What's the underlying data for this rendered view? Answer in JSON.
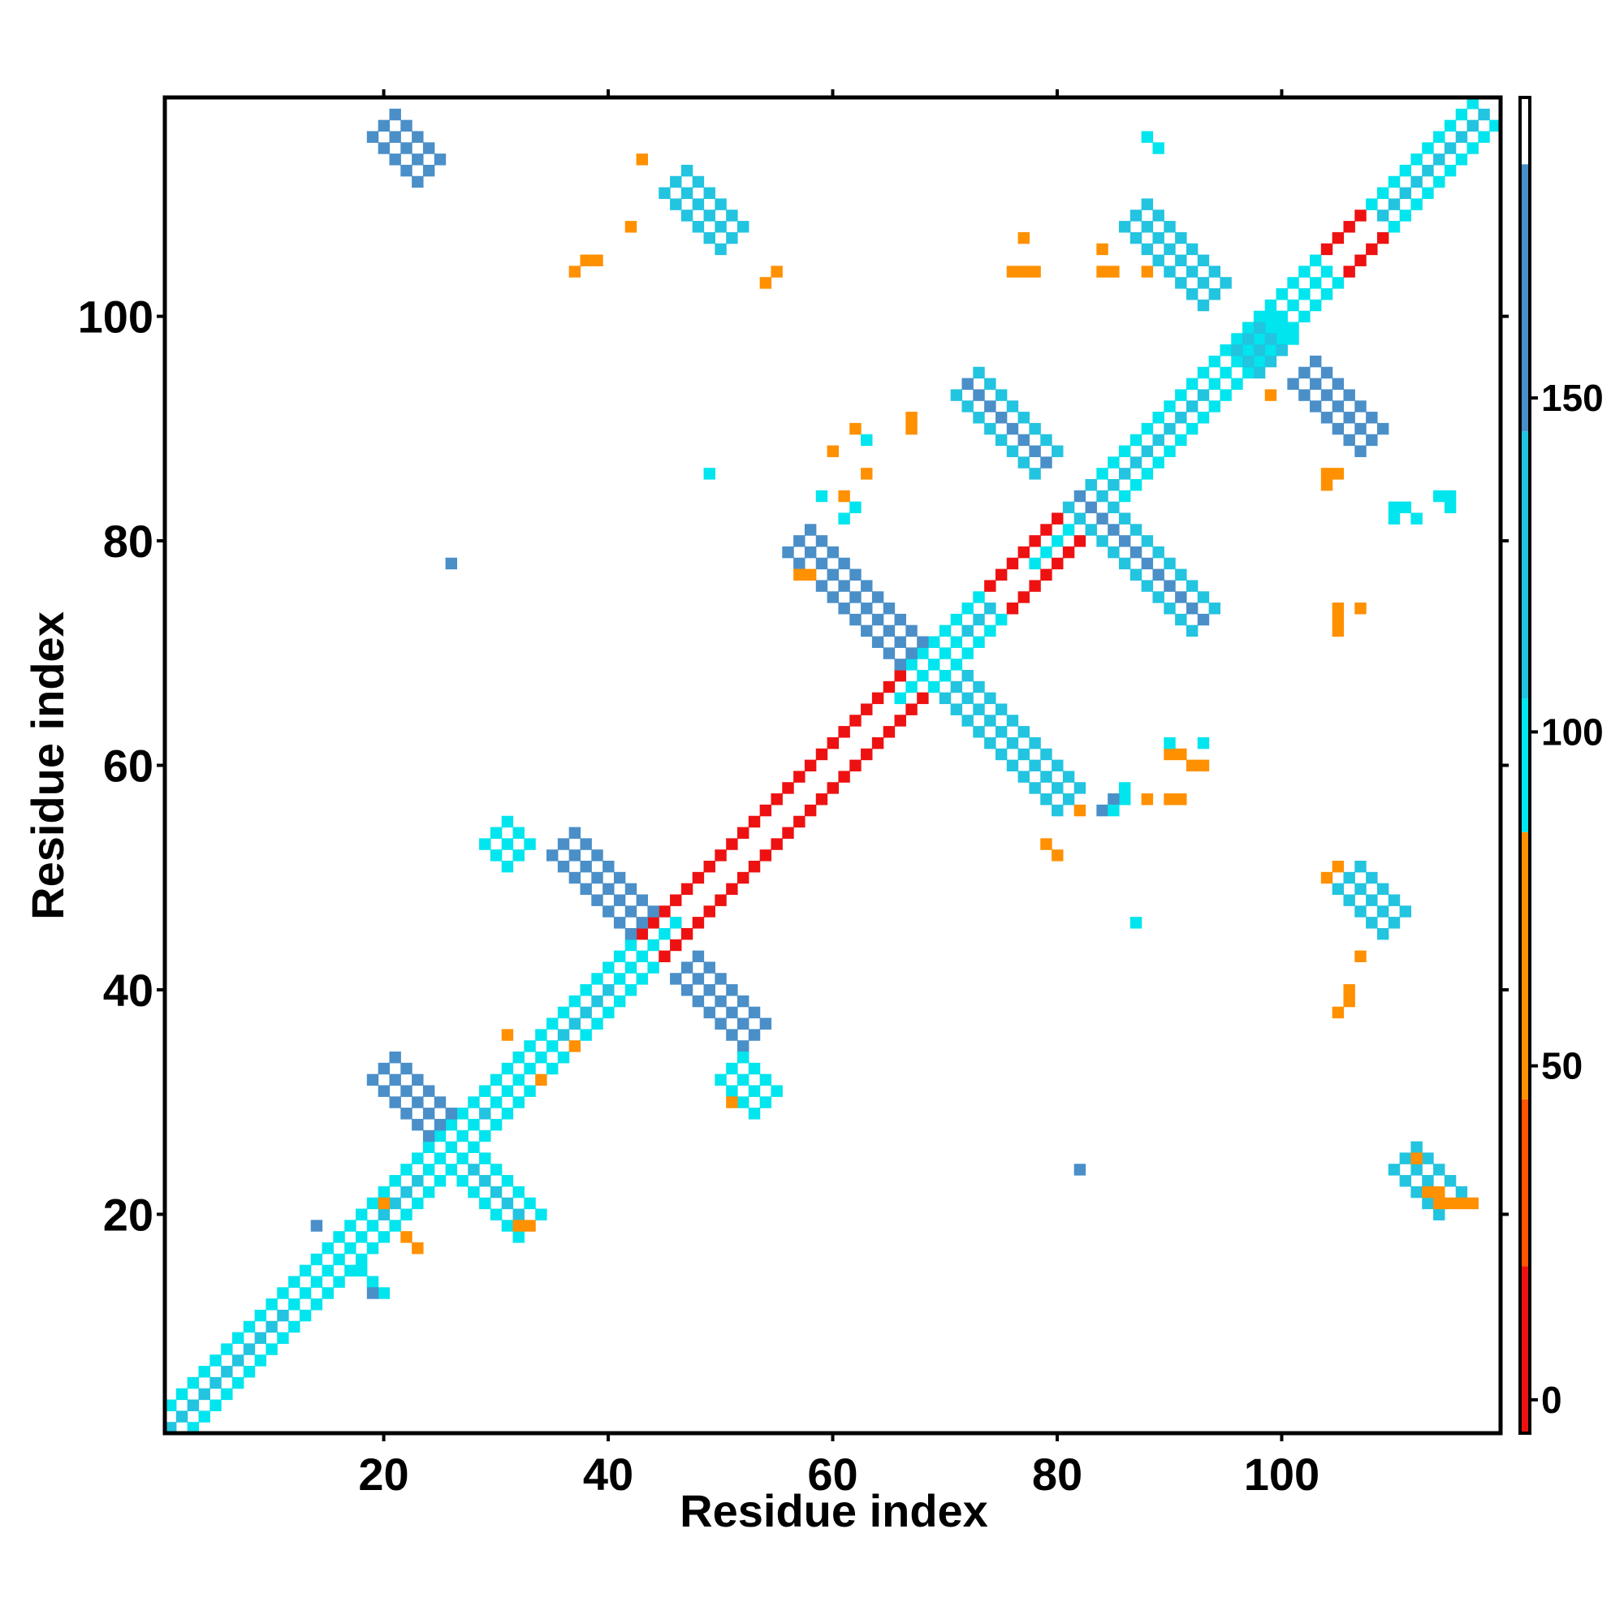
{
  "chart_data": {
    "type": "heatmap",
    "title": "",
    "xlabel": "Residue index",
    "ylabel": "Residue index",
    "xlim": [
      0.5,
      119.5
    ],
    "ylim": [
      0.5,
      119.5
    ],
    "x_ticks": [
      20,
      40,
      60,
      80,
      100
    ],
    "x_tick_labels": [
      "20",
      "40",
      "60",
      "80",
      "100"
    ],
    "y_ticks": [
      20,
      40,
      60,
      80,
      100
    ],
    "y_tick_labels": [
      "20",
      "40",
      "60",
      "80",
      "100"
    ],
    "colorbar": {
      "range": [
        -5,
        195
      ],
      "ticks": [
        0,
        50,
        100,
        150
      ],
      "tick_labels": [
        "0",
        "50",
        "100",
        "150"
      ],
      "bands": [
        {
          "from": -5,
          "to": 20,
          "color": "#ee1111"
        },
        {
          "from": 20,
          "to": 45,
          "color": "#ff5500"
        },
        {
          "from": 45,
          "to": 85,
          "color": "#ff9000"
        },
        {
          "from": 85,
          "to": 105,
          "color": "#00e5ee"
        },
        {
          "from": 105,
          "to": 145,
          "color": "#22c4e0"
        },
        {
          "from": 145,
          "to": 185,
          "color": "#4a8fc8"
        },
        {
          "from": 185,
          "to": 195,
          "color": "#ffffff"
        }
      ]
    },
    "grid": false,
    "legend": "colorbar-right",
    "colors": {
      "red": "#ee1111",
      "orange_red": "#ff5500",
      "orange": "#ff9000",
      "cyan": "#00e5ee",
      "light_blue": "#22c4e0",
      "steel_blue": "#4a8fc8"
    },
    "regions": [
      {
        "kind": "band",
        "from": [
          1,
          1
        ],
        "to": [
          118,
          118
        ],
        "width": 3,
        "near": [
          4,
          5
        ],
        "far": [
          3,
          3
        ]
      },
      {
        "kind": "band",
        "from": [
          44,
          44
        ],
        "to": [
          67,
          67
        ],
        "width": 3,
        "near": [
          0,
          1
        ],
        "far": [
          0,
          0
        ]
      },
      {
        "kind": "band",
        "from": [
          75,
          75
        ],
        "to": [
          83,
          83
        ],
        "width": 3,
        "near": [
          0,
          1
        ],
        "far": [
          0,
          0
        ]
      },
      {
        "kind": "band",
        "from": [
          100,
          100
        ],
        "to": [
          108,
          108
        ],
        "width": 3,
        "near": [
          0,
          1
        ],
        "far": [
          0,
          0
        ]
      },
      {
        "kind": "band",
        "from": [
          12,
          12
        ],
        "to": [
          19,
          19
        ],
        "width": 3,
        "near": [
          3,
          5
        ],
        "far": [
          3,
          3
        ]
      },
      {
        "kind": "band",
        "from": [
          30,
          30
        ],
        "to": [
          35,
          35
        ],
        "width": 3,
        "near": [
          3,
          5
        ],
        "far": [
          3,
          3
        ]
      },
      {
        "kind": "band",
        "from": [
          94,
          94
        ],
        "to": [
          104,
          104
        ],
        "width": 3,
        "near": [
          3,
          5
        ],
        "far": [
          3,
          3
        ]
      },
      {
        "kind": "band",
        "from": [
          41,
          41
        ],
        "to": [
          46,
          46
        ],
        "width": 1,
        "near": [
          3,
          3
        ],
        "far": [
          3,
          3
        ]
      },
      {
        "kind": "band",
        "from": [
          66,
          66
        ],
        "to": [
          71,
          71
        ],
        "width": 1,
        "near": [
          3,
          3
        ],
        "far": [
          3,
          3
        ]
      },
      {
        "kind": "band",
        "from": [
          78,
          78
        ],
        "to": [
          83,
          83
        ],
        "width": 1,
        "near": [
          3,
          3
        ],
        "far": [
          3,
          3
        ]
      },
      {
        "kind": "band",
        "from": [
          24,
          24
        ],
        "to": [
          28,
          28
        ],
        "width": 1,
        "near": [
          3,
          3
        ],
        "far": [
          3,
          3
        ]
      },
      {
        "kind": "band",
        "from": [
          20,
          33
        ],
        "to": [
          25,
          28
        ],
        "width": 3,
        "near": [
          4,
          5
        ],
        "far": [
          3,
          5
        ]
      },
      {
        "kind": "band",
        "from": [
          28,
          24
        ],
        "to": [
          33,
          19
        ],
        "width": 3,
        "near": [
          4,
          5
        ],
        "far": [
          3,
          5
        ]
      },
      {
        "kind": "band",
        "from": [
          36,
          53
        ],
        "to": [
          43,
          46
        ],
        "width": 3,
        "near": [
          4,
          5
        ],
        "far": [
          4,
          5
        ]
      },
      {
        "kind": "band",
        "from": [
          47,
          42
        ],
        "to": [
          53,
          36
        ],
        "width": 3,
        "near": [
          4,
          5
        ],
        "far": [
          4,
          5
        ]
      },
      {
        "kind": "band",
        "from": [
          51,
          33
        ],
        "to": [
          54,
          30
        ],
        "width": 2,
        "near": [
          3,
          4
        ],
        "far": [
          3,
          4
        ]
      },
      {
        "kind": "band",
        "from": [
          30,
          54
        ],
        "to": [
          32,
          52
        ],
        "width": 2,
        "near": [
          3,
          4
        ],
        "far": [
          3,
          4
        ]
      },
      {
        "kind": "band",
        "from": [
          57,
          80
        ],
        "to": [
          67,
          70
        ],
        "width": 3,
        "near": [
          4,
          5
        ],
        "far": [
          4,
          5
        ]
      },
      {
        "kind": "band",
        "from": [
          71,
          67
        ],
        "to": [
          81,
          57
        ],
        "width": 3,
        "near": [
          4,
          5
        ],
        "far": [
          4,
          5
        ]
      },
      {
        "kind": "band",
        "from": [
          72,
          94
        ],
        "to": [
          79,
          87
        ],
        "width": 3,
        "near": [
          5,
          5
        ],
        "far": [
          4,
          5
        ]
      },
      {
        "kind": "band",
        "from": [
          82,
          84
        ],
        "to": [
          93,
          73
        ],
        "width": 3,
        "near": [
          5,
          5
        ],
        "far": [
          4,
          5
        ]
      },
      {
        "kind": "band",
        "from": [
          87,
          109
        ],
        "to": [
          93,
          102
        ],
        "width": 3,
        "near": [
          4,
          5
        ],
        "far": [
          4,
          5
        ]
      },
      {
        "kind": "band",
        "from": [
          102,
          95
        ],
        "to": [
          108,
          89
        ],
        "width": 3,
        "near": [
          4,
          5
        ],
        "far": [
          4,
          5
        ]
      },
      {
        "kind": "band",
        "from": [
          20,
          117
        ],
        "to": [
          24,
          113
        ],
        "width": 3,
        "near": [
          4,
          5
        ],
        "far": [
          4,
          5
        ]
      },
      {
        "kind": "band",
        "from": [
          46,
          112
        ],
        "to": [
          51,
          107
        ],
        "width": 3,
        "near": [
          4,
          5
        ],
        "far": [
          4,
          5
        ]
      },
      {
        "kind": "band",
        "from": [
          106,
          50
        ],
        "to": [
          110,
          46
        ],
        "width": 3,
        "near": [
          4,
          5
        ],
        "far": [
          4,
          5
        ]
      },
      {
        "kind": "band",
        "from": [
          111,
          25
        ],
        "to": [
          115,
          21
        ],
        "width": 3,
        "near": [
          4,
          5
        ],
        "far": [
          4,
          5
        ]
      },
      {
        "kind": "band",
        "from": [
          97,
          98
        ],
        "to": [
          99,
          96
        ],
        "width": 2,
        "near": [
          3,
          4
        ],
        "far": [
          3,
          4
        ]
      },
      {
        "kind": "cells",
        "color": 2,
        "points": [
          [
            20,
            21
          ],
          [
            22,
            18
          ],
          [
            23,
            17
          ],
          [
            33,
            19
          ],
          [
            32,
            19
          ],
          [
            34,
            32
          ],
          [
            31,
            36
          ],
          [
            37,
            35
          ],
          [
            51,
            30
          ],
          [
            57,
            77
          ],
          [
            58,
            77
          ],
          [
            60,
            88
          ],
          [
            63,
            86
          ],
          [
            61,
            84
          ],
          [
            62,
            90
          ],
          [
            67,
            91
          ],
          [
            67,
            90
          ],
          [
            43,
            114
          ],
          [
            37,
            104
          ],
          [
            38,
            105
          ],
          [
            39,
            105
          ],
          [
            42,
            108
          ],
          [
            55,
            104
          ],
          [
            54,
            103
          ],
          [
            76,
            104
          ],
          [
            77,
            104
          ],
          [
            78,
            104
          ],
          [
            77,
            107
          ],
          [
            82,
            56
          ],
          [
            84,
            56
          ],
          [
            90,
            61
          ],
          [
            91,
            61
          ],
          [
            92,
            60
          ],
          [
            93,
            60
          ],
          [
            88,
            57
          ],
          [
            90,
            57
          ],
          [
            91,
            57
          ],
          [
            80,
            52
          ],
          [
            79,
            53
          ],
          [
            105,
            74
          ],
          [
            105,
            73
          ],
          [
            105,
            72
          ],
          [
            107,
            74
          ],
          [
            105,
            51
          ],
          [
            104,
            50
          ],
          [
            106,
            40
          ],
          [
            106,
            39
          ],
          [
            105,
            38
          ],
          [
            107,
            43
          ],
          [
            112,
            25
          ],
          [
            113,
            22
          ],
          [
            114,
            22
          ],
          [
            114,
            21
          ],
          [
            115,
            21
          ],
          [
            116,
            21
          ],
          [
            117,
            21
          ],
          [
            88,
            104
          ],
          [
            85,
            104
          ],
          [
            84,
            104
          ],
          [
            84,
            106
          ],
          [
            105,
            86
          ],
          [
            104,
            86
          ],
          [
            104,
            85
          ],
          [
            99,
            93
          ],
          [
            86,
            57
          ],
          [
            85,
            57
          ]
        ]
      },
      {
        "kind": "cells",
        "color": 3,
        "points": [
          [
            26,
            78
          ],
          [
            49,
            86
          ],
          [
            82,
            24
          ],
          [
            87,
            46
          ],
          [
            59,
            84
          ],
          [
            61,
            82
          ],
          [
            62,
            83
          ],
          [
            63,
            89
          ],
          [
            90,
            62
          ],
          [
            93,
            62
          ],
          [
            86,
            58
          ],
          [
            86,
            57
          ],
          [
            85,
            56
          ],
          [
            88,
            116
          ],
          [
            89,
            115
          ],
          [
            110,
            83
          ],
          [
            110,
            82
          ],
          [
            111,
            83
          ],
          [
            112,
            82
          ],
          [
            114,
            84
          ],
          [
            115,
            84
          ],
          [
            115,
            83
          ],
          [
            99,
            100
          ],
          [
            101,
            98
          ],
          [
            100,
            99
          ],
          [
            18,
            15
          ],
          [
            19,
            14
          ],
          [
            20,
            13
          ]
        ]
      },
      {
        "kind": "cells",
        "color": 5,
        "points": [
          [
            14,
            19
          ],
          [
            19,
            13
          ],
          [
            26,
            78
          ],
          [
            82,
            24
          ],
          [
            84,
            56
          ],
          [
            85,
            57
          ]
        ]
      }
    ]
  }
}
